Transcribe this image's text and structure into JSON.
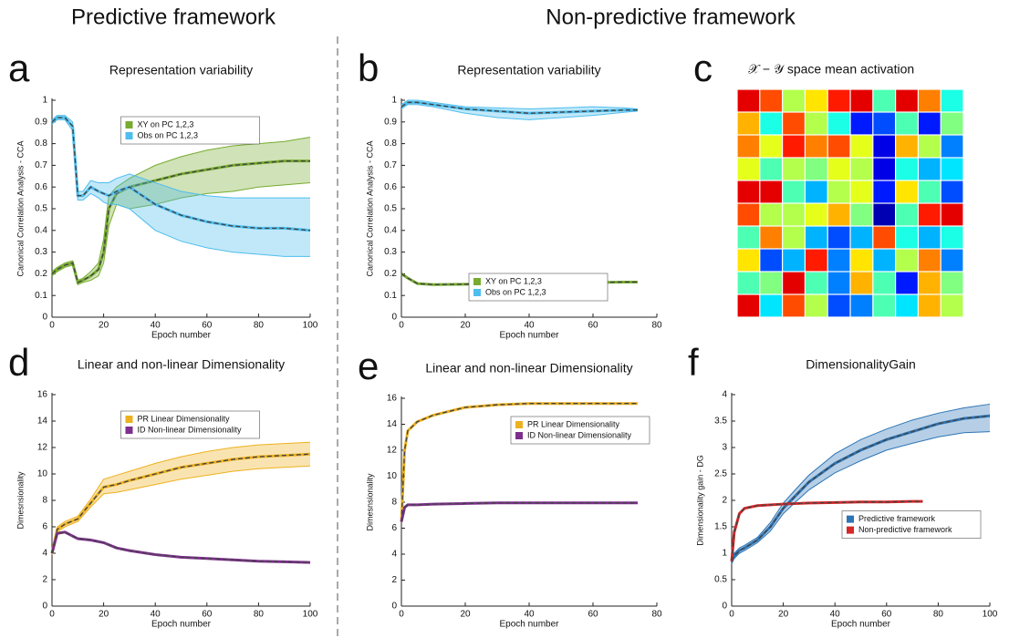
{
  "headings": [
    "Predictive framework",
    "Non-predictive framework"
  ],
  "chart_data": [
    {
      "type": "line",
      "panel": "a",
      "title": "Representation variability",
      "xlabel": "Epoch number",
      "ylabel": "Canonical Correlation Analysis - CCA",
      "xlim": [
        0,
        100
      ],
      "xticks": [
        0,
        20,
        40,
        60,
        80,
        100
      ],
      "ylim": [
        0,
        1
      ],
      "yticks": [
        0,
        0.1,
        0.2,
        0.3,
        0.4,
        0.5,
        0.6,
        0.7,
        0.8,
        0.9,
        1
      ],
      "legend": "upper center",
      "series": [
        {
          "name": "XY on PC 1,2,3",
          "color": "#77ac30",
          "x": [
            0,
            2,
            5,
            8,
            10,
            12,
            15,
            18,
            20,
            22,
            25,
            30,
            40,
            50,
            60,
            70,
            80,
            90,
            100
          ],
          "values": [
            0.2,
            0.22,
            0.24,
            0.25,
            0.16,
            0.17,
            0.19,
            0.22,
            0.3,
            0.5,
            0.57,
            0.6,
            0.63,
            0.66,
            0.68,
            0.7,
            0.71,
            0.72,
            0.72
          ],
          "lower": [
            0.19,
            0.21,
            0.23,
            0.24,
            0.15,
            0.16,
            0.17,
            0.19,
            0.25,
            0.42,
            0.52,
            0.5,
            0.52,
            0.55,
            0.57,
            0.58,
            0.6,
            0.61,
            0.62
          ],
          "upper": [
            0.21,
            0.23,
            0.25,
            0.26,
            0.17,
            0.18,
            0.21,
            0.25,
            0.36,
            0.56,
            0.6,
            0.64,
            0.7,
            0.74,
            0.77,
            0.79,
            0.8,
            0.81,
            0.83
          ]
        },
        {
          "name": "Obs on PC 1,2,3",
          "color": "#4dbeee",
          "x": [
            0,
            2,
            5,
            8,
            10,
            12,
            15,
            18,
            20,
            22,
            25,
            30,
            40,
            50,
            60,
            70,
            80,
            90,
            100
          ],
          "values": [
            0.9,
            0.92,
            0.92,
            0.88,
            0.56,
            0.56,
            0.6,
            0.58,
            0.57,
            0.56,
            0.58,
            0.6,
            0.52,
            0.47,
            0.44,
            0.42,
            0.41,
            0.41,
            0.4
          ],
          "lower": [
            0.89,
            0.91,
            0.91,
            0.86,
            0.54,
            0.54,
            0.57,
            0.55,
            0.53,
            0.52,
            0.52,
            0.5,
            0.4,
            0.35,
            0.32,
            0.3,
            0.29,
            0.28,
            0.28
          ],
          "upper": [
            0.91,
            0.93,
            0.93,
            0.9,
            0.58,
            0.58,
            0.63,
            0.62,
            0.62,
            0.62,
            0.64,
            0.66,
            0.62,
            0.58,
            0.56,
            0.55,
            0.55,
            0.55,
            0.55
          ]
        }
      ]
    },
    {
      "type": "line",
      "panel": "b",
      "title": "Representation variability",
      "xlabel": "Epoch number",
      "ylabel": "Canonical Correlation Analysis - CCA",
      "xlim": [
        0,
        80
      ],
      "xticks": [
        0,
        20,
        40,
        60,
        80
      ],
      "ylim": [
        0,
        1
      ],
      "yticks": [
        0,
        0.1,
        0.2,
        0.3,
        0.4,
        0.5,
        0.6,
        0.7,
        0.8,
        0.9,
        1
      ],
      "legend": "lower center",
      "series": [
        {
          "name": "XY on PC 1,2,3",
          "color": "#77ac30",
          "x": [
            0,
            2,
            5,
            10,
            20,
            30,
            40,
            50,
            60,
            70,
            74
          ],
          "values": [
            0.2,
            0.18,
            0.155,
            0.15,
            0.152,
            0.155,
            0.158,
            0.16,
            0.16,
            0.162,
            0.162
          ]
        },
        {
          "name": "Obs on PC 1,2,3",
          "color": "#4dbeee",
          "x": [
            0,
            2,
            5,
            10,
            20,
            30,
            40,
            50,
            60,
            70,
            74
          ],
          "values": [
            0.97,
            0.99,
            0.99,
            0.98,
            0.96,
            0.95,
            0.94,
            0.945,
            0.95,
            0.955,
            0.955
          ],
          "lower": [
            0.96,
            0.98,
            0.98,
            0.97,
            0.94,
            0.92,
            0.91,
            0.92,
            0.93,
            0.945,
            0.95
          ],
          "upper": [
            0.98,
            1.0,
            1.0,
            0.99,
            0.97,
            0.965,
            0.96,
            0.965,
            0.97,
            0.965,
            0.96
          ]
        }
      ]
    },
    {
      "type": "heatmap",
      "panel": "c",
      "title": "𝒳 − 𝒴 space mean activation",
      "colormap": "jet",
      "values": [
        [
          0.9,
          0.8,
          0.55,
          0.65,
          0.85,
          0.9,
          0.45,
          0.9,
          0.75,
          0.4
        ],
        [
          0.7,
          0.4,
          0.8,
          0.55,
          0.4,
          0.15,
          0.2,
          0.45,
          0.15,
          0.5
        ],
        [
          0.75,
          0.6,
          0.85,
          0.75,
          0.8,
          0.6,
          0.1,
          0.7,
          0.55,
          0.25
        ],
        [
          0.6,
          0.45,
          0.55,
          0.5,
          0.6,
          0.55,
          0.1,
          0.4,
          0.3,
          0.35
        ],
        [
          0.9,
          0.9,
          0.45,
          0.3,
          0.55,
          0.6,
          0.15,
          0.65,
          0.45,
          0.2
        ],
        [
          0.8,
          0.55,
          0.55,
          0.6,
          0.7,
          0.5,
          0.05,
          0.45,
          0.85,
          0.9
        ],
        [
          0.45,
          0.75,
          0.55,
          0.3,
          0.2,
          0.3,
          0.8,
          0.4,
          0.3,
          0.4
        ],
        [
          0.65,
          0.2,
          0.3,
          0.85,
          0.25,
          0.65,
          0.3,
          0.55,
          0.75,
          0.25
        ],
        [
          0.45,
          0.5,
          0.9,
          0.45,
          0.25,
          0.7,
          0.45,
          0.15,
          0.7,
          0.5
        ],
        [
          0.9,
          0.35,
          0.8,
          0.55,
          0.2,
          0.25,
          0.45,
          0.35,
          0.7,
          0.55
        ]
      ]
    },
    {
      "type": "line",
      "panel": "d",
      "title": "Linear and non-linear Dimensionality",
      "xlabel": "Epoch number",
      "ylabel": "Dimesnsionality",
      "xlim": [
        0,
        100
      ],
      "xticks": [
        0,
        20,
        40,
        60,
        80,
        100
      ],
      "ylim": [
        0,
        16
      ],
      "yticks": [
        0,
        2,
        4,
        6,
        8,
        10,
        12,
        14,
        16
      ],
      "legend": "upper center",
      "series": [
        {
          "name": "PR Linear Dimensionality",
          "color": "#edb120",
          "x": [
            0,
            2,
            5,
            10,
            15,
            20,
            25,
            30,
            40,
            50,
            60,
            70,
            80,
            90,
            100
          ],
          "values": [
            4.0,
            5.8,
            6.2,
            6.6,
            7.8,
            9.0,
            9.2,
            9.5,
            10.0,
            10.5,
            10.8,
            11.1,
            11.3,
            11.4,
            11.5
          ],
          "lower": [
            3.9,
            5.6,
            6.0,
            6.4,
            7.5,
            8.5,
            8.6,
            8.8,
            9.2,
            9.6,
            9.9,
            10.2,
            10.4,
            10.5,
            10.6
          ],
          "upper": [
            4.1,
            6.0,
            6.4,
            6.8,
            8.1,
            9.6,
            9.9,
            10.2,
            10.8,
            11.3,
            11.7,
            12.0,
            12.2,
            12.3,
            12.4
          ]
        },
        {
          "name": "ID Non-linear Dimensionality",
          "color": "#7e2f8e",
          "x": [
            0,
            2,
            5,
            10,
            15,
            20,
            25,
            30,
            40,
            50,
            60,
            70,
            80,
            90,
            100
          ],
          "values": [
            4.0,
            5.5,
            5.6,
            5.1,
            5.0,
            4.8,
            4.4,
            4.2,
            3.9,
            3.7,
            3.6,
            3.5,
            3.4,
            3.35,
            3.3
          ]
        }
      ]
    },
    {
      "type": "line",
      "panel": "e",
      "title": "Linear and non-linear Dimensionality",
      "xlabel": "Epoch number",
      "ylabel": "Dimesnsionality",
      "xlim": [
        0,
        80
      ],
      "xticks": [
        0,
        20,
        40,
        60,
        80
      ],
      "ylim": [
        0,
        16
      ],
      "yticks": [
        0,
        2,
        4,
        6,
        8,
        10,
        12,
        14,
        16
      ],
      "legend": "upper right",
      "series": [
        {
          "name": "PR Linear Dimensionality",
          "color": "#edb120",
          "x": [
            0,
            1,
            2,
            5,
            10,
            20,
            30,
            40,
            50,
            60,
            70,
            74
          ],
          "values": [
            6.5,
            12.0,
            13.5,
            14.2,
            14.7,
            15.3,
            15.5,
            15.6,
            15.6,
            15.6,
            15.6,
            15.6
          ]
        },
        {
          "name": "ID Non-linear Dimensionality",
          "color": "#7e2f8e",
          "x": [
            0,
            1,
            2,
            5,
            10,
            20,
            30,
            40,
            50,
            60,
            70,
            74
          ],
          "values": [
            6.5,
            7.6,
            7.8,
            7.8,
            7.85,
            7.9,
            7.95,
            7.95,
            7.95,
            7.95,
            7.95,
            7.95
          ]
        }
      ]
    },
    {
      "type": "line",
      "panel": "f",
      "title": "DimensionalityGain",
      "xlabel": "Epoch number",
      "ylabel": "Dimensionality gain - DG",
      "xlim": [
        0,
        100
      ],
      "xticks": [
        0,
        20,
        40,
        60,
        80,
        100
      ],
      "ylim": [
        0,
        4
      ],
      "yticks": [
        0,
        0.5,
        1,
        1.5,
        2,
        2.5,
        3,
        3.5,
        4
      ],
      "legend": "center right",
      "series": [
        {
          "name": "Predictive framework",
          "color": "#2e75b6",
          "x": [
            0,
            1,
            3,
            5,
            10,
            15,
            20,
            25,
            30,
            40,
            50,
            60,
            70,
            80,
            90,
            100
          ],
          "values": [
            0.85,
            0.95,
            1.05,
            1.1,
            1.25,
            1.5,
            1.85,
            2.1,
            2.35,
            2.7,
            2.95,
            3.15,
            3.3,
            3.45,
            3.55,
            3.6
          ],
          "lower": [
            0.8,
            0.9,
            1.0,
            1.05,
            1.2,
            1.42,
            1.75,
            1.98,
            2.2,
            2.52,
            2.75,
            2.95,
            3.08,
            3.2,
            3.28,
            3.3
          ],
          "upper": [
            0.9,
            1.0,
            1.1,
            1.15,
            1.3,
            1.58,
            1.95,
            2.22,
            2.48,
            2.88,
            3.15,
            3.35,
            3.52,
            3.65,
            3.75,
            3.82
          ]
        },
        {
          "name": "Non-predictive framework",
          "color": "#d62728",
          "x": [
            0,
            1,
            3,
            5,
            10,
            20,
            30,
            40,
            50,
            60,
            70,
            74
          ],
          "values": [
            0.85,
            1.4,
            1.75,
            1.85,
            1.9,
            1.93,
            1.95,
            1.96,
            1.97,
            1.97,
            1.98,
            1.98
          ]
        }
      ]
    }
  ]
}
